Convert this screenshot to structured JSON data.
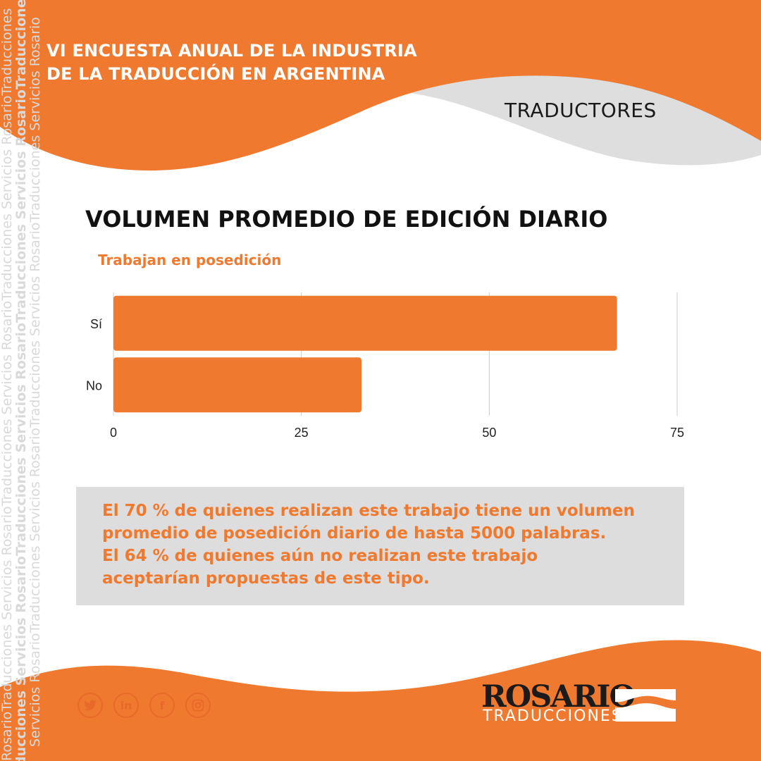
{
  "header": {
    "title_line1": "VI ENCUESTA ANUAL DE LA INDUSTRIA",
    "title_line2": "DE LA TRADUCCIÓN EN ARGENTINA",
    "section": "TRADUCTORES"
  },
  "chart_data": {
    "type": "bar",
    "orientation": "horizontal",
    "title": "VOLUMEN PROMEDIO DE EDICIÓN DIARIO",
    "subtitle": "Trabajan en posedición",
    "categories": [
      "Sí",
      "No"
    ],
    "values": [
      67,
      33
    ],
    "xlim": [
      0,
      75
    ],
    "xticks": [
      "0",
      "25",
      "50",
      "75"
    ],
    "grid": true,
    "legend": "none",
    "bar_color": "#ef7a2f"
  },
  "callout": {
    "line1": "El 70 % de quienes realizan este trabajo tiene un volumen",
    "line2": "promedio de posedición diario de hasta 5000 palabras.",
    "line3": "El 64 % de quienes aún no realizan este trabajo",
    "line4": "aceptarían propuestas de este tipo."
  },
  "socials": [
    {
      "name": "twitter-icon"
    },
    {
      "name": "linkedin-icon",
      "glyph": "in"
    },
    {
      "name": "facebook-icon",
      "glyph": "f"
    },
    {
      "name": "instagram-icon"
    }
  ],
  "logo": {
    "main": "ROSARIO",
    "sub": "TRADUCCIONES",
    "watermark_words": [
      "Rosario",
      "Traducciones",
      "Servicios"
    ]
  },
  "colors": {
    "orange": "#ef7a2f",
    "grey": "#dddddd",
    "dark": "#111111"
  }
}
